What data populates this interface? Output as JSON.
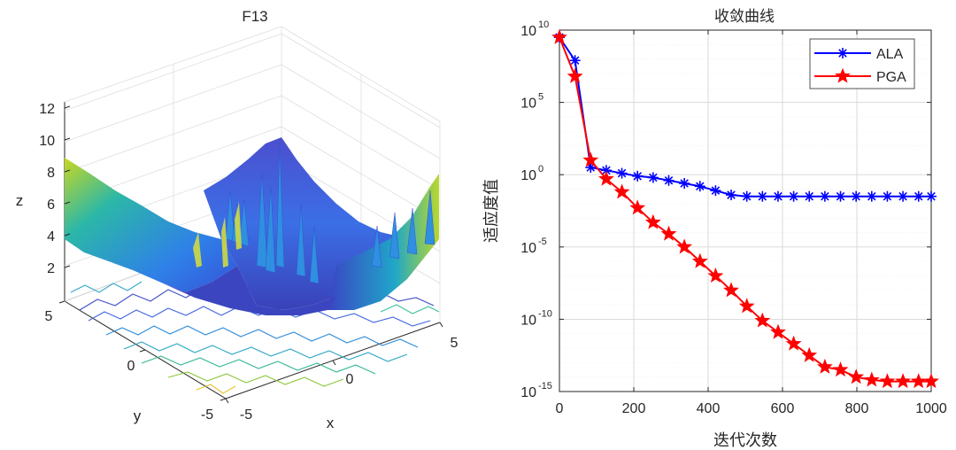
{
  "chart_data": [
    {
      "type": "surface",
      "title": "F13",
      "xlabel": "x",
      "ylabel": "y",
      "zlabel": "z",
      "x_ticks": [
        "-5",
        "0",
        "5"
      ],
      "y_ticks": [
        "-5",
        "0",
        "5"
      ],
      "z_ticks": [
        "2",
        "4",
        "6",
        "8",
        "10",
        "12"
      ],
      "xlim": [
        -5,
        5
      ],
      "ylim": [
        -5,
        5
      ],
      "zlim": [
        0,
        13
      ],
      "colormap": "parula",
      "contour_projection": true,
      "grid": true
    },
    {
      "type": "line",
      "title": "收敛曲线",
      "xlabel": "迭代次数",
      "ylabel": "适应度值",
      "yscale": "log",
      "xlim": [
        0,
        1000
      ],
      "ylim_exponent": [
        -15,
        10
      ],
      "x_ticks": [
        "0",
        "200",
        "400",
        "600",
        "800",
        "1000"
      ],
      "y_ticks": [
        {
          "base": "10",
          "exp": "10"
        },
        {
          "base": "10",
          "exp": "5"
        },
        {
          "base": "10",
          "exp": "0"
        },
        {
          "base": "10",
          "exp": "-5"
        },
        {
          "base": "10",
          "exp": "-10"
        },
        {
          "base": "10",
          "exp": "-15"
        }
      ],
      "grid": true,
      "legend_position": "top-right",
      "series": [
        {
          "name": "ALA",
          "color": "#0000ff",
          "marker": "asterisk",
          "x": [
            0,
            42,
            84,
            126,
            168,
            210,
            252,
            294,
            336,
            378,
            420,
            462,
            504,
            546,
            588,
            630,
            672,
            714,
            756,
            798,
            840,
            882,
            924,
            966,
            1000
          ],
          "log10_y": [
            9.5,
            7.9,
            0.5,
            0.3,
            0.1,
            -0.1,
            -0.2,
            -0.4,
            -0.6,
            -0.8,
            -1.1,
            -1.4,
            -1.5,
            -1.5,
            -1.5,
            -1.5,
            -1.5,
            -1.5,
            -1.5,
            -1.5,
            -1.5,
            -1.5,
            -1.5,
            -1.5,
            -1.5
          ]
        },
        {
          "name": "PGA",
          "color": "#ff0000",
          "marker": "pentagram",
          "x": [
            0,
            42,
            84,
            126,
            168,
            210,
            252,
            294,
            336,
            378,
            420,
            462,
            504,
            546,
            588,
            630,
            672,
            714,
            756,
            798,
            840,
            882,
            924,
            966,
            1000
          ],
          "log10_y": [
            9.5,
            6.8,
            1.0,
            -0.3,
            -1.2,
            -2.3,
            -3.3,
            -4.1,
            -5.0,
            -6.0,
            -7.0,
            -8.0,
            -9.1,
            -10.1,
            -10.9,
            -11.7,
            -12.5,
            -13.3,
            -13.5,
            -14.0,
            -14.2,
            -14.3,
            -14.3,
            -14.3,
            -14.3
          ]
        }
      ]
    }
  ]
}
